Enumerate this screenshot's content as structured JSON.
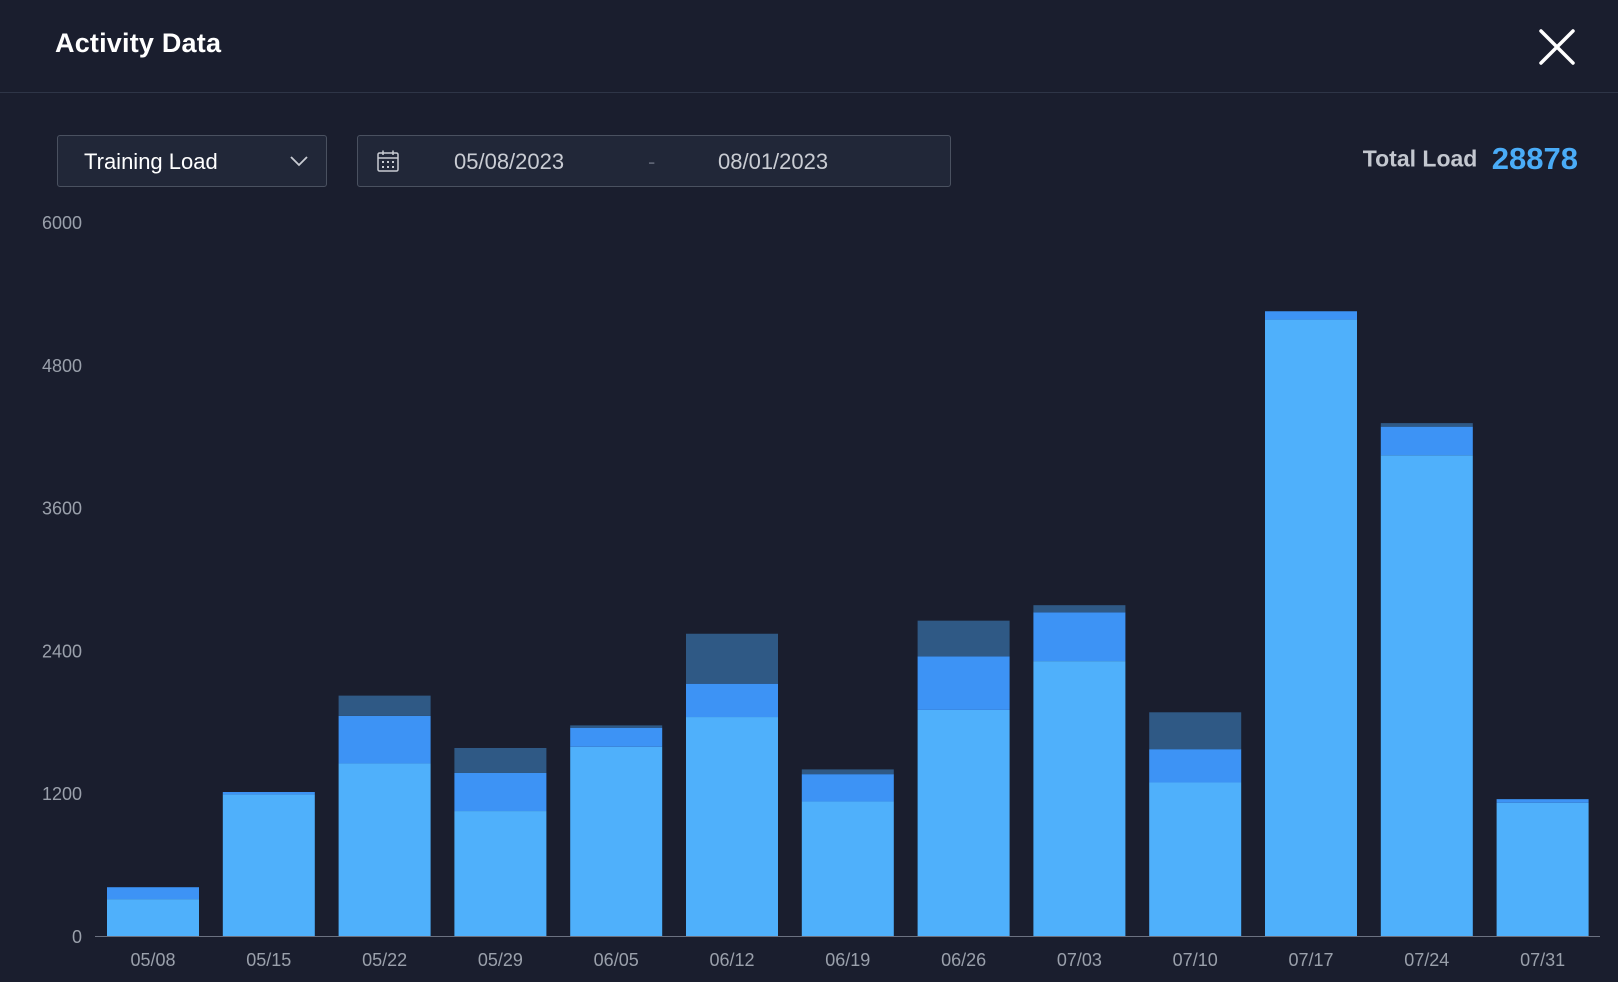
{
  "dialog": {
    "title": "Activity Data"
  },
  "toolbar": {
    "metric_select": {
      "selected": "Training Load"
    },
    "date_range": {
      "start": "05/08/2023",
      "separator": "-",
      "end": "08/01/2023"
    },
    "total_load": {
      "label": "Total Load",
      "value": "28878"
    }
  },
  "icons": {
    "close": "close-icon",
    "chevron": "chevron-down-icon",
    "calendar": "calendar-icon"
  },
  "colors": {
    "background": "#1a1e2e",
    "accent": "#4aacf7",
    "series_colors": [
      "#4fb0fb",
      "#3d93f5",
      "#2f5985"
    ]
  },
  "chart_data": {
    "type": "bar",
    "stacked": true,
    "categories": [
      "05/08",
      "05/15",
      "05/22",
      "05/29",
      "06/05",
      "06/12",
      "06/19",
      "06/26",
      "07/03",
      "07/10",
      "07/17",
      "07/24",
      "07/31"
    ],
    "series": [
      {
        "values": [
          310,
          1190,
          1450,
          1050,
          1590,
          1840,
          1130,
          1900,
          2310,
          1290,
          5180,
          4040,
          1120
        ]
      },
      {
        "values": [
          100,
          20,
          400,
          320,
          160,
          280,
          230,
          450,
          410,
          280,
          70,
          240,
          30
        ]
      },
      {
        "values": [
          0,
          0,
          170,
          210,
          20,
          420,
          40,
          300,
          60,
          310,
          0,
          30,
          0
        ]
      }
    ],
    "y_ticks": [
      0,
      1200,
      2400,
      3600,
      4800,
      6000
    ],
    "ylim": [
      0,
      6000
    ],
    "grid": false,
    "legend": "none"
  }
}
